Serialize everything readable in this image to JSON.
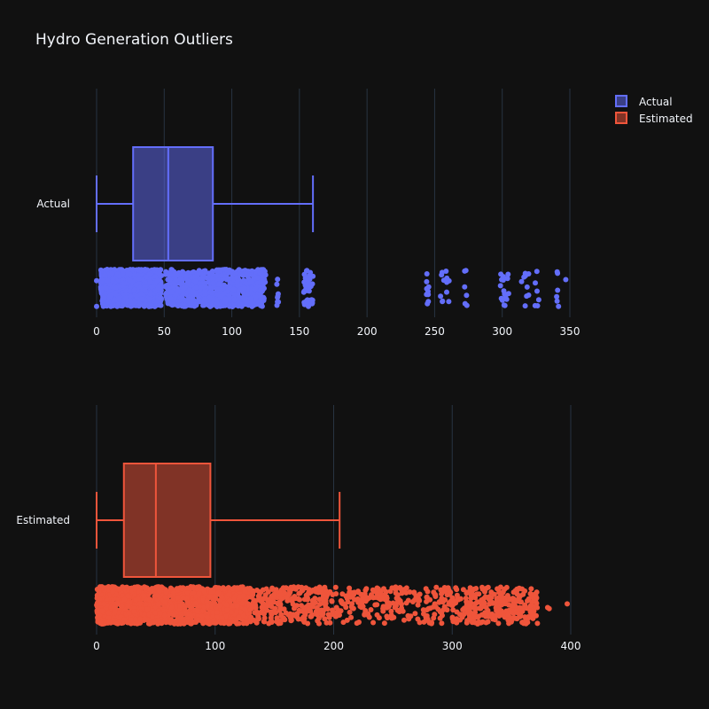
{
  "chart_data": {
    "type": "box",
    "title": "Hydro Generation Outliers",
    "legend": {
      "placement": "top-right",
      "items": [
        "Actual",
        "Estimated"
      ]
    },
    "colors": {
      "Actual": "#636efa",
      "Estimated": "#ef553b",
      "background": "#111111",
      "grid": "#283442",
      "text": "#f2f5fa"
    },
    "grid": true,
    "orientation": "horizontal",
    "panels": [
      {
        "series": "Actual",
        "category_label": "Actual",
        "xlim": [
          0,
          350
        ],
        "ticks": [
          "0",
          "50",
          "100",
          "150",
          "200",
          "250",
          "300",
          "350"
        ],
        "tick_values": [
          0,
          50,
          100,
          150,
          200,
          250,
          300,
          350
        ],
        "stats": {
          "min": 0,
          "q1": 27,
          "median": 53,
          "q3": 86,
          "upper_fence": 160
        },
        "point_clusters": [
          {
            "from": 0,
            "to": 0,
            "count": 2
          },
          {
            "from": 3,
            "to": 48,
            "count": 900
          },
          {
            "from": 51,
            "to": 125,
            "count": 700
          },
          {
            "from": 133,
            "to": 135,
            "count": 8
          },
          {
            "from": 153,
            "to": 160,
            "count": 40
          },
          {
            "from": 244,
            "to": 246,
            "count": 10
          },
          {
            "from": 253,
            "to": 261,
            "count": 14
          },
          {
            "from": 272,
            "to": 274,
            "count": 6
          },
          {
            "from": 298,
            "to": 305,
            "count": 16
          },
          {
            "from": 313,
            "to": 320,
            "count": 10
          },
          {
            "from": 324,
            "to": 327,
            "count": 6
          },
          {
            "from": 340,
            "to": 342,
            "count": 6
          },
          {
            "from": 347,
            "to": 347,
            "count": 1
          }
        ]
      },
      {
        "series": "Estimated",
        "category_label": "Estimated",
        "xlim": [
          0,
          400
        ],
        "ticks": [
          "0",
          "100",
          "200",
          "300",
          "400"
        ],
        "tick_values": [
          0,
          100,
          200,
          300,
          400
        ],
        "stats": {
          "min": 0,
          "q1": 23,
          "median": 50,
          "q3": 96,
          "upper_fence": 205
        },
        "point_clusters": [
          {
            "from": 0,
            "to": 130,
            "count": 1400
          },
          {
            "from": 130,
            "to": 200,
            "count": 260
          },
          {
            "from": 200,
            "to": 300,
            "count": 220
          },
          {
            "from": 300,
            "to": 372,
            "count": 280
          },
          {
            "from": 380,
            "to": 382,
            "count": 2
          },
          {
            "from": 397,
            "to": 397,
            "count": 1
          }
        ]
      }
    ]
  }
}
